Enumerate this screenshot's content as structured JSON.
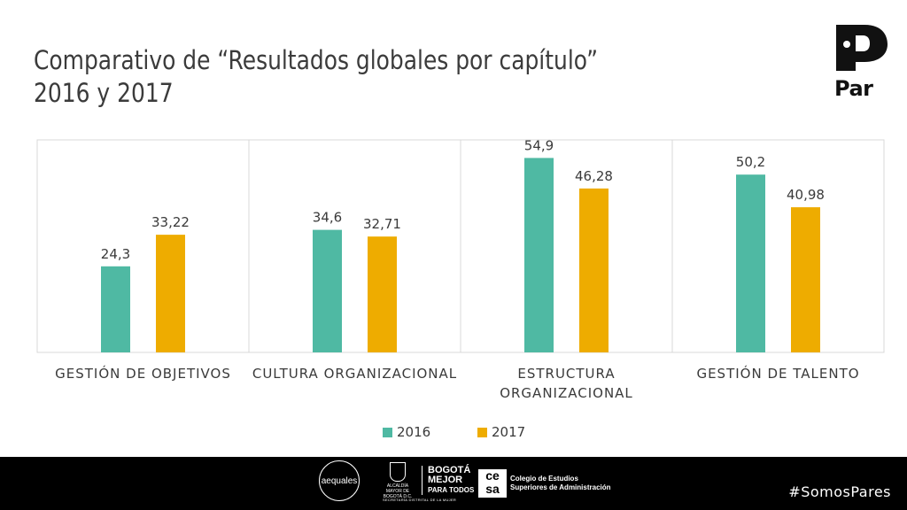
{
  "title": {
    "line1": "Comparativo de “Resultados globales por capítulo”",
    "line2": "2016 y 2017"
  },
  "logo": {
    "text": "Par"
  },
  "chart_data": {
    "type": "bar",
    "categories": [
      [
        "GESTIÓN DE OBJETIVOS"
      ],
      [
        "CULTURA ORGANIZACIONAL"
      ],
      [
        "ESTRUCTURA",
        "ORGANIZACIONAL"
      ],
      [
        "GESTIÓN DE TALENTO"
      ]
    ],
    "series": [
      {
        "name": "2016",
        "values": [
          24.3,
          34.6,
          54.9,
          50.2
        ],
        "labels": [
          "24,3",
          "34,6",
          "54,9",
          "50,2"
        ],
        "color": "#4fb9a3"
      },
      {
        "name": "2017",
        "values": [
          33.22,
          32.71,
          46.28,
          40.98
        ],
        "labels": [
          "33,22",
          "32,71",
          "46,28",
          "40,98"
        ],
        "color": "#eeac00"
      }
    ],
    "ylim": [
      0,
      60
    ],
    "legend_position": "bottom",
    "grid": false
  },
  "footer": {
    "hashtag": "#SomosPares",
    "aequales": "aequales",
    "alcaldia": "ALCALDÍA MAYOR DE BOGOTÁ D.C.",
    "bogota_line1": "BOGOTÁ",
    "bogota_line2": "MEJOR",
    "bogota_line3": "PARA TODOS",
    "secretaria": "SECRETARÍA DISTRITAL DE LA MUJER",
    "cesa_mark": "ce sa",
    "cesa_line1": "Colegio de Estudios",
    "cesa_line2": "Superiores de Administración"
  }
}
